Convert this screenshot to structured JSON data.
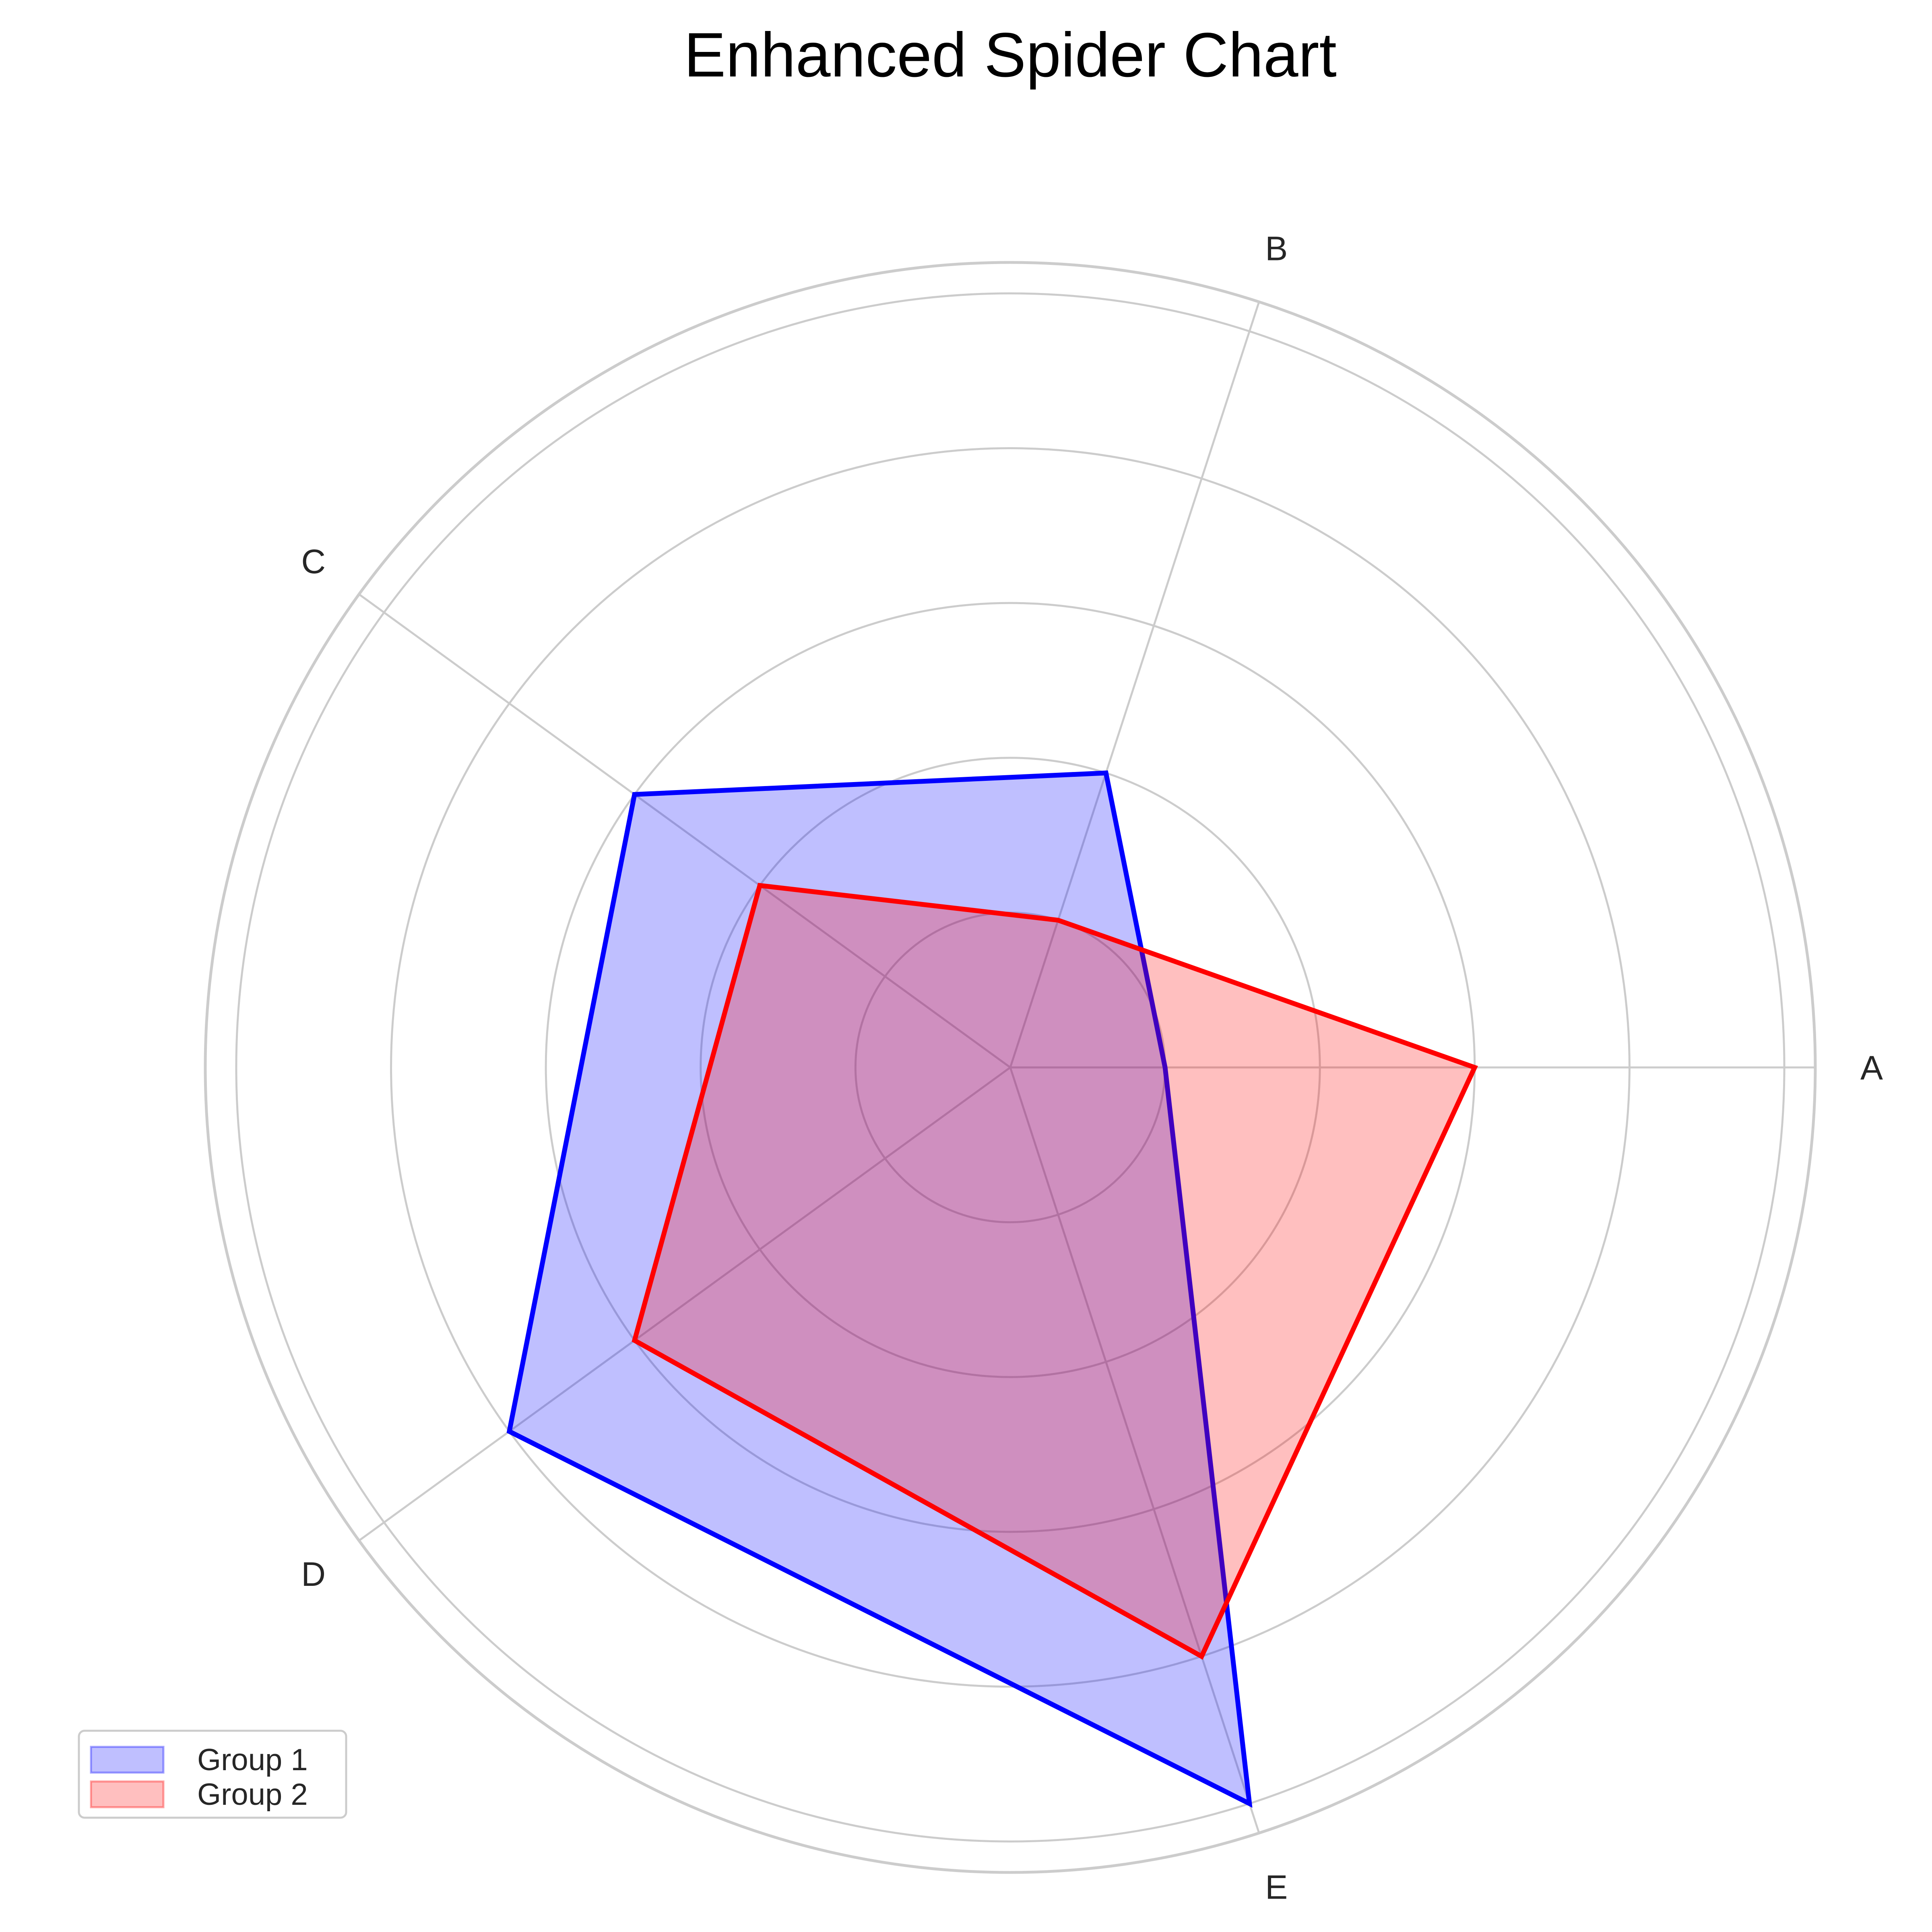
{
  "chart_data": {
    "type": "radar",
    "title": "Enhanced Spider Chart",
    "categories": [
      "A",
      "B",
      "C",
      "D",
      "E"
    ],
    "rlim": [
      0,
      5.2
    ],
    "rgrid": [
      1,
      2,
      3,
      4,
      5
    ],
    "grid": true,
    "legend_position": "lower-left",
    "series": [
      {
        "name": "Group 1",
        "values": [
          1,
          2,
          3,
          4,
          5
        ],
        "color": "#0000ff"
      },
      {
        "name": "Group 2",
        "values": [
          3,
          1,
          2,
          3,
          4
        ],
        "color": "#ff0000"
      }
    ]
  }
}
